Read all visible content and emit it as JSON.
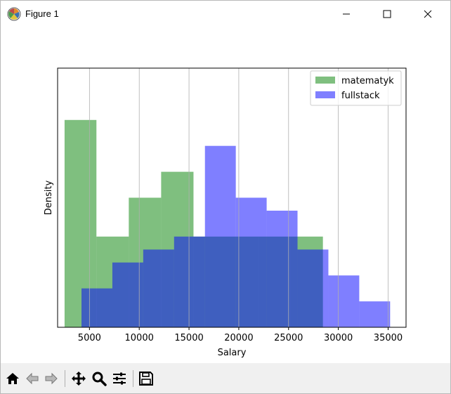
{
  "window": {
    "title": "Figure 1",
    "icons": {
      "app": "matplotlib-icon",
      "minimize": "minimize-icon",
      "maximize": "maximize-icon",
      "close": "close-icon"
    }
  },
  "toolbar": {
    "buttons": [
      {
        "name": "home-icon"
      },
      {
        "name": "back-icon"
      },
      {
        "name": "forward-icon"
      },
      {
        "name": "pan-icon"
      },
      {
        "name": "zoom-icon"
      },
      {
        "name": "configure-subplots-icon"
      },
      {
        "name": "save-icon"
      }
    ]
  },
  "chart_data": {
    "type": "bar",
    "title": "",
    "xlabel": "Salary",
    "ylabel": "Density",
    "xlim": [
      1800,
      36800
    ],
    "ylim": [
      0,
      1.0
    ],
    "xticks": [
      5000,
      10000,
      15000,
      20000,
      25000,
      30000,
      35000
    ],
    "xtick_labels": [
      "5000",
      "10000",
      "15000",
      "20000",
      "25000",
      "30000",
      "35000"
    ],
    "yticks_shown": false,
    "grid": "x-axis vertical lines",
    "legend_position": "upper right",
    "series": [
      {
        "name": "matematyk",
        "color": "#008000",
        "alpha": 0.5,
        "bins": [
          2500,
          5700,
          8950,
          12200,
          15450,
          18700,
          21950,
          25200,
          28450
        ],
        "heights": [
          0.8,
          0.35,
          0.5,
          0.6,
          0.35,
          0.35,
          0.35,
          0.35
        ]
      },
      {
        "name": "fullstack",
        "color": "#0000ff",
        "alpha": 0.5,
        "bins": [
          4200,
          7300,
          10400,
          13500,
          16600,
          19700,
          22800,
          25900,
          29000,
          32100,
          35200
        ],
        "heights": [
          0.15,
          0.25,
          0.3,
          0.35,
          0.7,
          0.5,
          0.45,
          0.3,
          0.2,
          0.1
        ]
      }
    ]
  }
}
